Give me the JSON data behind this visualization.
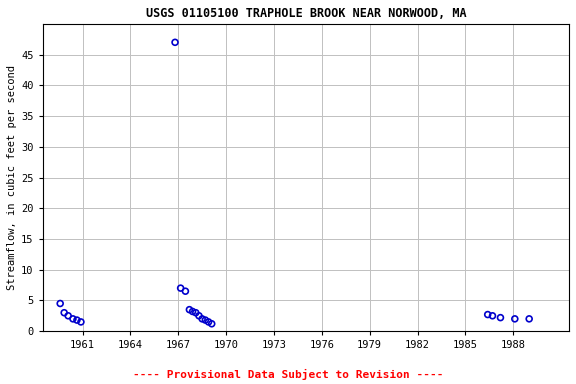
{
  "title": "USGS 01105100 TRAPHOLE BROOK NEAR NORWOOD, MA",
  "ylabel": "Streamflow, in cubic feet per second",
  "provisional_text": "---- Provisional Data Subject to Revision ----",
  "xlim": [
    1958.5,
    1991.5
  ],
  "ylim": [
    0,
    50
  ],
  "xticks": [
    1961,
    1964,
    1967,
    1970,
    1973,
    1976,
    1979,
    1982,
    1985,
    1988
  ],
  "yticks": [
    0,
    5,
    10,
    15,
    20,
    25,
    30,
    35,
    40,
    45
  ],
  "marker_color": "#0000CC",
  "background_color": "#ffffff",
  "grid_color": "#c0c0c0",
  "title_fontsize": 8.5,
  "label_fontsize": 7.5,
  "tick_fontsize": 7.5,
  "provisional_fontsize": 8,
  "data_x": [
    1959.6,
    1959.85,
    1960.1,
    1960.4,
    1960.65,
    1960.9,
    1966.8,
    1967.15,
    1967.45,
    1967.7,
    1967.9,
    1968.1,
    1968.3,
    1968.5,
    1968.7,
    1968.9,
    1969.1,
    1986.4,
    1986.7,
    1987.2,
    1988.1,
    1989.0
  ],
  "data_y": [
    4.5,
    3.0,
    2.5,
    2.0,
    1.8,
    1.5,
    47.0,
    7.0,
    6.5,
    3.5,
    3.2,
    3.0,
    2.5,
    2.0,
    1.8,
    1.5,
    1.2,
    2.7,
    2.5,
    2.2,
    2.0,
    2.0
  ],
  "marker_size": 18,
  "marker_linewidth": 1.2
}
